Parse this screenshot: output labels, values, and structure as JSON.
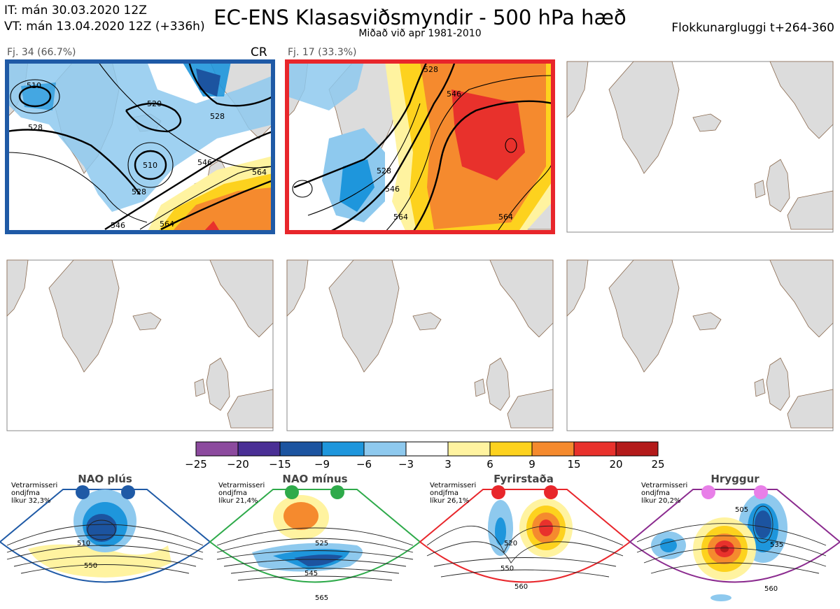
{
  "header": {
    "it_line": "IT: mán 30.03.2020 12Z",
    "vt_line": "VT: mán 13.04.2020 12Z  (+336h)",
    "title": "EC-ENS Klasasviðsmyndir - 500 hPa hæð",
    "subtitle": "Miðað við apr 1981-2010",
    "window": "Flokkunargluggi t+264-360"
  },
  "clusters": [
    {
      "label": "Fj. 34 (66.7%)",
      "tag": "CR",
      "border": "#1f5aa6",
      "contours": [
        "510",
        "520",
        "528",
        "528",
        "528",
        "510",
        "528",
        "546",
        "546",
        "564",
        "564"
      ]
    },
    {
      "label": "Fj. 17 (33.3%)",
      "tag": "",
      "border": "#e8262b",
      "contours": [
        "528",
        "528",
        "546",
        "546",
        "564",
        "564"
      ]
    }
  ],
  "colorbar": {
    "ticks": [
      "−25",
      "−20",
      "−15",
      "−9",
      "−6",
      "−3",
      "3",
      "6",
      "9",
      "15",
      "20",
      "25"
    ],
    "colors": [
      "#8c4a9e",
      "#4a2f95",
      "#1c54a0",
      "#1e96dc",
      "#8ec9ee",
      "#ffffff",
      "#fff3a0",
      "#fdd21e",
      "#f58a2e",
      "#e8312c",
      "#b31a1a"
    ]
  },
  "regimes": [
    {
      "name": "NAO plús",
      "note": [
        "Vetrarmisseri",
        "ondjfma",
        "líkur 32,3%"
      ],
      "dot_color": "#1f5aa6",
      "border": "#1f5aa6",
      "contours": [
        "510",
        "550"
      ]
    },
    {
      "name": "NAO mínus",
      "note": [
        "Vetrarmisseri",
        "ondjfma",
        "líkur 21,4%"
      ],
      "dot_color": "#2eaa4a",
      "border": "#2eaa4a",
      "contours": [
        "525",
        "545",
        "565"
      ]
    },
    {
      "name": "Fyrirstaða",
      "note": [
        "Vetrarmisseri",
        "ondjfma",
        "líkur 26,1%"
      ],
      "dot_color": "#e8262b",
      "border": "#e8262b",
      "contours": [
        "520",
        "550",
        "560"
      ]
    },
    {
      "name": "Hryggur",
      "note": [
        "Vetrarmisseri",
        "ondjfma",
        "líkur 20,2%"
      ],
      "dot_color": "#e87fe8",
      "border": "#8b2b8f",
      "contours": [
        "505",
        "535",
        "560"
      ]
    }
  ]
}
